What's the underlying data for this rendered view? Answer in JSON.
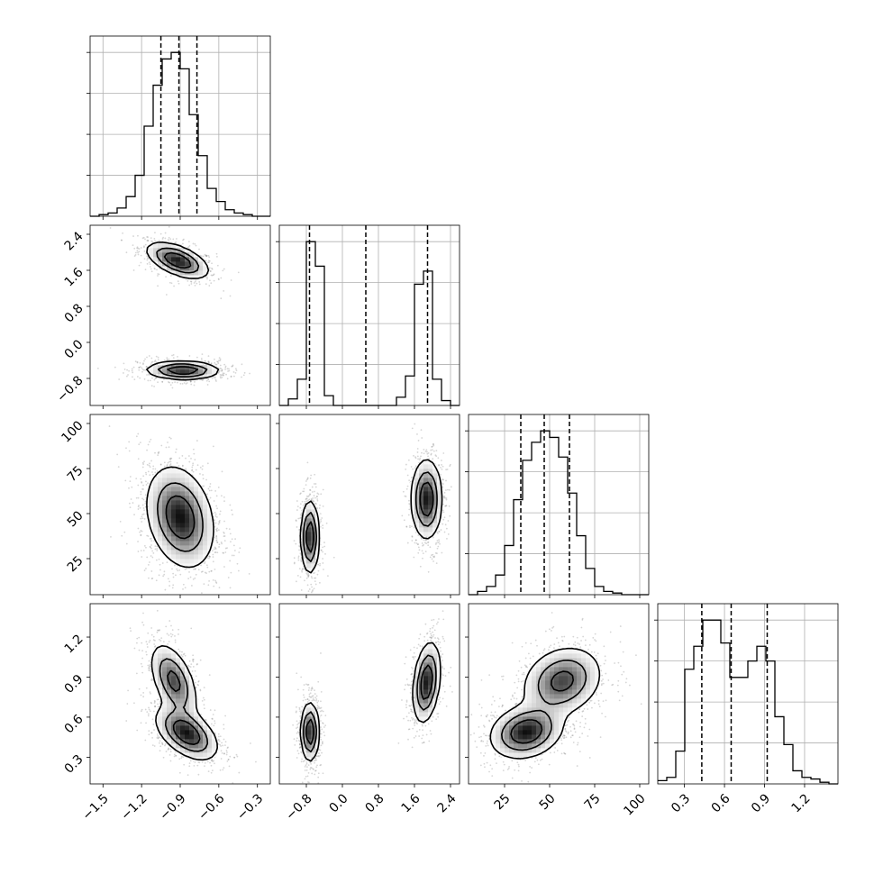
{
  "chart_data": {
    "type": "corner",
    "parameters": [
      {
        "ticks": [
          -1.5,
          -1.2,
          -0.9,
          -0.6,
          -0.3
        ],
        "tick_labels": [
          "−1.5",
          "−1.2",
          "−0.9",
          "−0.6",
          "−0.3"
        ],
        "range": [
          -1.6,
          -0.2
        ],
        "quantiles": [
          -1.05,
          -0.91,
          -0.77
        ],
        "hist": {
          "edges": [
            -1.6,
            -1.53,
            -1.46,
            -1.39,
            -1.32,
            -1.25,
            -1.18,
            -1.11,
            -1.04,
            -0.97,
            -0.9,
            -0.83,
            -0.76,
            -0.69,
            -0.62,
            -0.55,
            -0.48,
            -0.41,
            -0.34,
            -0.27,
            -0.2
          ],
          "values": [
            0,
            0.01,
            0.02,
            0.05,
            0.12,
            0.25,
            0.55,
            0.8,
            0.96,
            1.0,
            0.9,
            0.62,
            0.37,
            0.17,
            0.09,
            0.04,
            0.02,
            0.01,
            0,
            0
          ]
        }
      },
      {
        "ticks": [
          -0.8,
          0.0,
          0.8,
          1.6,
          2.4
        ],
        "tick_labels": [
          "−0.8",
          "0.0",
          "0.8",
          "1.6",
          "2.4"
        ],
        "range": [
          -1.4,
          2.6
        ],
        "quantiles": [
          -0.73,
          0.52,
          1.89
        ],
        "hist": {
          "edges": [
            -1.4,
            -1.2,
            -1.0,
            -0.8,
            -0.6,
            -0.4,
            -0.2,
            0.0,
            0.2,
            0.4,
            0.6,
            0.8,
            1.0,
            1.2,
            1.4,
            1.6,
            1.8,
            2.0,
            2.2,
            2.4,
            2.6
          ],
          "values": [
            0,
            0.04,
            0.16,
            1.0,
            0.85,
            0.06,
            0,
            0,
            0,
            0,
            0,
            0,
            0,
            0.05,
            0.18,
            0.74,
            0.82,
            0.16,
            0.03,
            0
          ]
        }
      },
      {
        "ticks": [
          25,
          50,
          75,
          100
        ],
        "tick_labels": [
          "25",
          "50",
          "75",
          "100"
        ],
        "range": [
          5,
          105
        ],
        "quantiles": [
          34,
          47,
          61
        ],
        "hist": {
          "edges": [
            5,
            10,
            15,
            20,
            25,
            30,
            35,
            40,
            45,
            50,
            55,
            60,
            65,
            70,
            75,
            80,
            85,
            90,
            95,
            100,
            105
          ],
          "values": [
            0,
            0.02,
            0.05,
            0.12,
            0.3,
            0.58,
            0.82,
            0.93,
            1.0,
            0.96,
            0.84,
            0.62,
            0.36,
            0.16,
            0.05,
            0.02,
            0.01,
            0,
            0,
            0
          ]
        }
      },
      {
        "ticks": [
          0.3,
          0.6,
          0.9,
          1.2
        ],
        "tick_labels": [
          "0.3",
          "0.6",
          "0.9",
          "1.2"
        ],
        "range": [
          0.1,
          1.45
        ],
        "quantiles": [
          0.43,
          0.65,
          0.92
        ],
        "hist": {
          "edges": [
            0.1,
            0.1675,
            0.235,
            0.3025,
            0.37,
            0.4375,
            0.505,
            0.5725,
            0.64,
            0.7075,
            0.775,
            0.8425,
            0.91,
            0.9775,
            1.045,
            1.1125,
            1.18,
            1.2475,
            1.315,
            1.3825,
            1.45
          ],
          "values": [
            0.02,
            0.04,
            0.2,
            0.7,
            0.84,
            1.0,
            1.0,
            0.86,
            0.65,
            0.65,
            0.75,
            0.84,
            0.75,
            0.41,
            0.24,
            0.08,
            0.04,
            0.03,
            0.01,
            0
          ]
        }
      }
    ],
    "joint_modes": [
      {
        "x": 0,
        "y": 1,
        "modes": [
          {
            "cx": -0.92,
            "cy": 1.82,
            "sx": 0.12,
            "sy": 0.2,
            "rho": -0.55,
            "w": 0.5
          },
          {
            "cx": -0.88,
            "cy": -0.62,
            "sx": 0.14,
            "sy": 0.1,
            "rho": -0.05,
            "w": 0.5
          }
        ]
      },
      {
        "x": 0,
        "y": 2,
        "modes": [
          {
            "cx": -0.9,
            "cy": 48,
            "sx": 0.13,
            "sy": 14,
            "rho": -0.25,
            "w": 1.0
          }
        ]
      },
      {
        "x": 1,
        "y": 2,
        "modes": [
          {
            "cx": -0.72,
            "cy": 37,
            "sx": 0.1,
            "sy": 10,
            "rho": 0.0,
            "w": 0.5
          },
          {
            "cx": 1.87,
            "cy": 58,
            "sx": 0.17,
            "sy": 11,
            "rho": 0.0,
            "w": 0.5
          }
        ]
      },
      {
        "x": 0,
        "y": 3,
        "modes": [
          {
            "cx": -0.95,
            "cy": 0.87,
            "sx": 0.09,
            "sy": 0.14,
            "rho": -0.5,
            "w": 0.45
          },
          {
            "cx": -0.85,
            "cy": 0.48,
            "sx": 0.12,
            "sy": 0.1,
            "rho": -0.5,
            "w": 0.55
          }
        ]
      },
      {
        "x": 1,
        "y": 3,
        "modes": [
          {
            "cx": -0.72,
            "cy": 0.49,
            "sx": 0.1,
            "sy": 0.11,
            "rho": 0.0,
            "w": 0.5
          },
          {
            "cx": 1.87,
            "cy": 0.86,
            "sx": 0.15,
            "sy": 0.15,
            "rho": 0.3,
            "w": 0.5
          }
        ]
      },
      {
        "x": 2,
        "y": 3,
        "modes": [
          {
            "cx": 37,
            "cy": 0.49,
            "sx": 10,
            "sy": 0.1,
            "rho": 0.2,
            "w": 0.55
          },
          {
            "cx": 57,
            "cy": 0.87,
            "sx": 11,
            "sy": 0.13,
            "rho": 0.2,
            "w": 0.45
          }
        ]
      }
    ],
    "grid": true,
    "legend": "none"
  }
}
